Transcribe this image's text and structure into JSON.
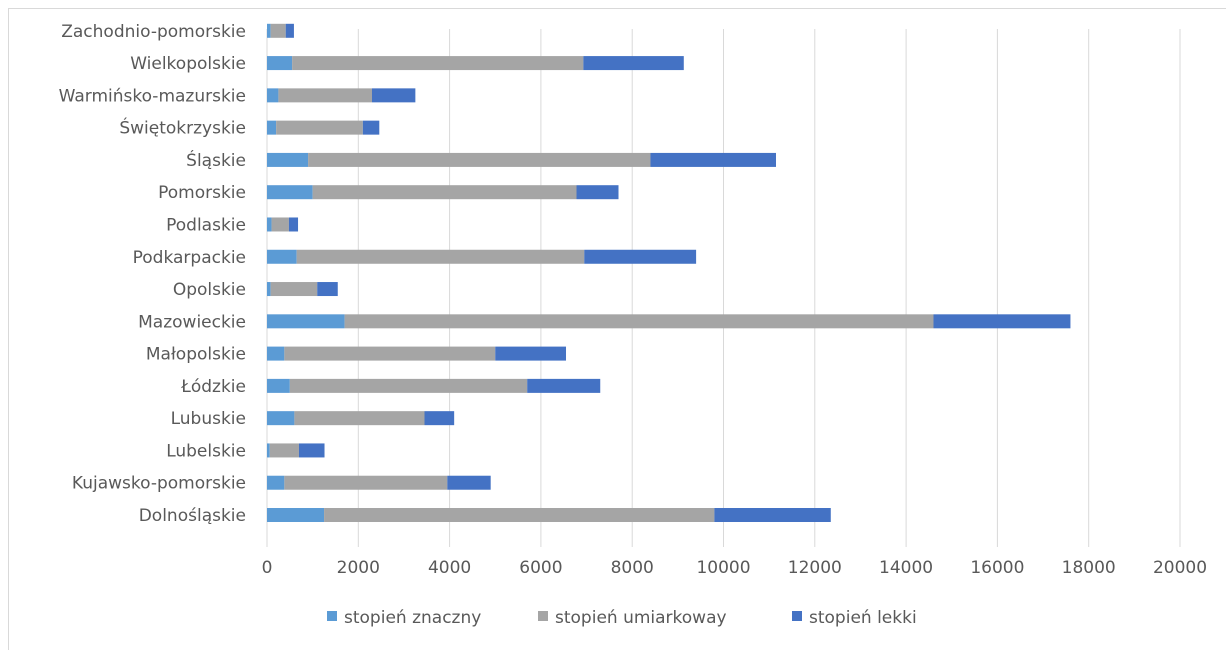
{
  "chart_data": {
    "type": "bar",
    "orientation": "horizontal",
    "stacked": true,
    "categories": [
      "Dolnośląskie",
      "Kujawsko-pomorskie",
      "Lubelskie",
      "Lubuskie",
      "Łódzkie",
      "Małopolskie",
      "Mazowieckie",
      "Opolskie",
      "Podkarpackie",
      "Podlaskie",
      "Pomorskie",
      "Śląskie",
      "Świętokrzyskie",
      "Warmińsko-mazurskie",
      "Wielkopolskie",
      "Zachodnio-pomorskie"
    ],
    "series": [
      {
        "name": "stopień znaczny",
        "color": "#5b9bd5",
        "values": [
          1250,
          380,
          60,
          600,
          500,
          380,
          1700,
          80,
          650,
          100,
          1000,
          900,
          200,
          250,
          550,
          80
        ]
      },
      {
        "name": "stopień umiarkoway",
        "color": "#a5a5a5",
        "values": [
          8550,
          3570,
          640,
          2850,
          5200,
          4620,
          12900,
          1020,
          6300,
          380,
          5780,
          7500,
          1900,
          2050,
          6380,
          330
        ]
      },
      {
        "name": "stopień lekki",
        "color": "#4472c4",
        "values": [
          2550,
          950,
          560,
          650,
          1600,
          1550,
          3000,
          450,
          2450,
          200,
          920,
          2750,
          360,
          950,
          2200,
          180
        ]
      }
    ],
    "xlim": [
      0,
      20000
    ],
    "xticks": [
      "0",
      "2000",
      "4000",
      "6000",
      "8000",
      "10000",
      "12000",
      "14000",
      "16000",
      "18000",
      "20000"
    ],
    "grid": "vertical",
    "legend": "bottom"
  }
}
